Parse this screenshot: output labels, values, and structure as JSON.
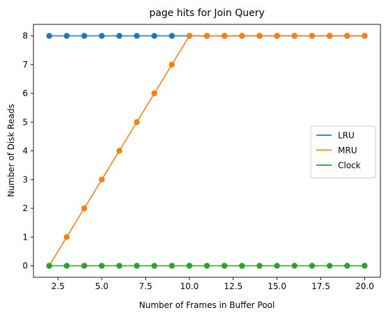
{
  "chart_data": {
    "type": "line",
    "title": "page hits for Join Query",
    "xlabel": "Number of Frames in Buffer Pool",
    "ylabel": "Number of Disk Reads",
    "x": [
      2,
      3,
      4,
      5,
      6,
      7,
      8,
      9,
      10,
      11,
      12,
      13,
      14,
      15,
      16,
      17,
      18,
      19,
      20
    ],
    "xlim": [
      1.1,
      20.9
    ],
    "ylim": [
      -0.4,
      8.4
    ],
    "xticks": [
      2.5,
      5.0,
      7.5,
      10.0,
      12.5,
      15.0,
      17.5,
      20.0
    ],
    "xtick_labels": [
      "2.5",
      "5.0",
      "7.5",
      "10.0",
      "12.5",
      "15.0",
      "17.5",
      "20.0"
    ],
    "yticks": [
      0,
      1,
      2,
      3,
      4,
      5,
      6,
      7,
      8
    ],
    "ytick_labels": [
      "0",
      "1",
      "2",
      "3",
      "4",
      "5",
      "6",
      "7",
      "8"
    ],
    "grid": false,
    "legend_position": "center-right",
    "markers": true,
    "series": [
      {
        "name": "LRU",
        "color": "#1f77b4",
        "values": [
          8,
          8,
          8,
          8,
          8,
          8,
          8,
          8,
          8,
          8,
          8,
          8,
          8,
          8,
          8,
          8,
          8,
          8,
          8
        ]
      },
      {
        "name": "MRU",
        "color": "#ff7f0e",
        "values": [
          0,
          1,
          2,
          3,
          4,
          5,
          6,
          7,
          8,
          8,
          8,
          8,
          8,
          8,
          8,
          8,
          8,
          8,
          8
        ]
      },
      {
        "name": "Clock",
        "color": "#2ca02c",
        "values": [
          0,
          0,
          0,
          0,
          0,
          0,
          0,
          0,
          0,
          0,
          0,
          0,
          0,
          0,
          0,
          0,
          0,
          0,
          0
        ]
      }
    ]
  }
}
